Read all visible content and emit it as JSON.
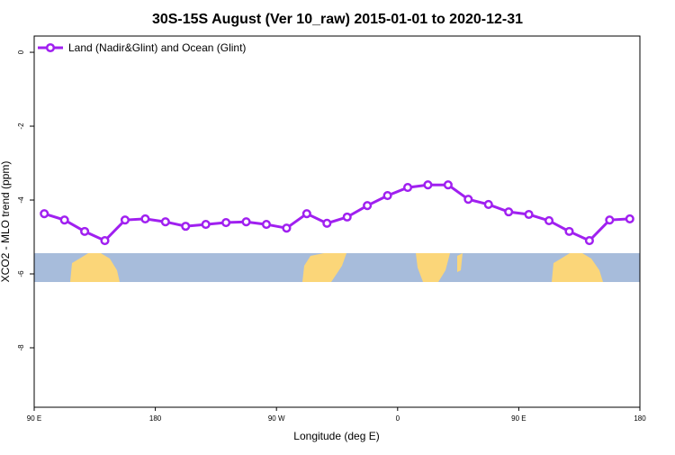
{
  "chart_data": {
    "type": "line",
    "title": "30S-15S August (Ver 10_raw)   2015-01-01 to 2020-12-31",
    "x_label": "Longitude (deg E)",
    "y_label": "XCO2 - MLO trend (ppm)",
    "x": [
      97.5,
      112.5,
      127.5,
      142.5,
      157.5,
      172.5,
      187.5,
      202.5,
      217.5,
      232.5,
      247.5,
      262.5,
      277.5,
      292.5,
      307.5,
      322.5,
      337.5,
      352.5,
      367.5,
      382.5,
      397.5,
      412.5,
      427.5,
      442.5,
      457.5,
      472.5,
      487.5,
      502.5,
      517.5,
      532.5
    ],
    "series": [
      {
        "name": "Land (Nadir&Glint) and Ocean (Glint)",
        "color": "#a020f0",
        "values": [
          -4.37,
          -4.54,
          -4.85,
          -5.1,
          -4.54,
          -4.51,
          -4.59,
          -4.71,
          -4.66,
          -4.61,
          -4.59,
          -4.66,
          -4.76,
          -4.37,
          -4.63,
          -4.46,
          -4.15,
          -3.88,
          -3.66,
          -3.59,
          -3.59,
          -3.98,
          -4.12,
          -4.32,
          -4.39,
          -4.56,
          -4.85,
          -5.1,
          -4.54,
          -4.51
        ]
      }
    ],
    "xlim": [
      90,
      540
    ],
    "xticks": [
      {
        "value": 90,
        "label": "90 E"
      },
      180,
      {
        "value": 270,
        "label": "90 W"
      },
      {
        "value": 360,
        "label": "0"
      },
      {
        "value": 450,
        "label": "90 E"
      },
      {
        "value": 540,
        "label": "180"
      }
    ],
    "ylim": [
      -9.61,
      0.44
    ],
    "yticks": [
      0,
      -2,
      -4,
      -6,
      -8
    ],
    "legend": "top-left"
  }
}
